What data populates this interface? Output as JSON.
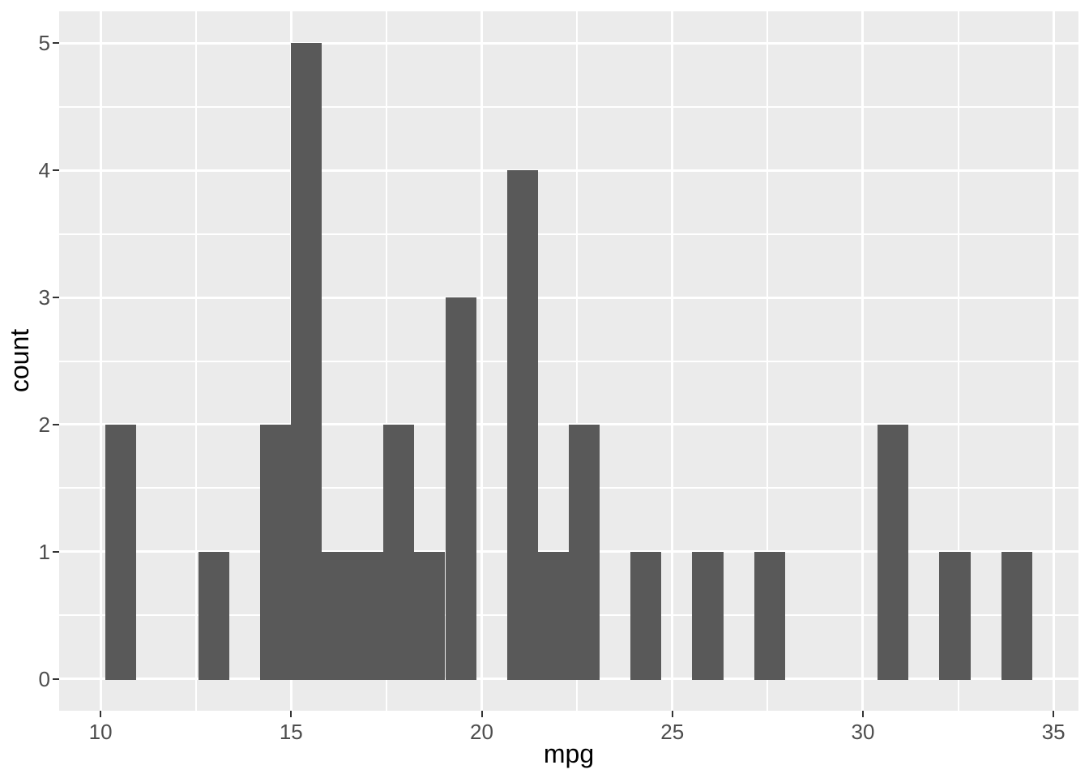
{
  "chart_data": {
    "type": "bar",
    "subtype": "histogram",
    "title": "",
    "xlabel": "mpg",
    "ylabel": "count",
    "x_ticks": [
      10,
      15,
      20,
      25,
      30,
      35
    ],
    "y_ticks": [
      0,
      1,
      2,
      3,
      4,
      5
    ],
    "x_minor_ticks": [
      12.5,
      17.5,
      22.5,
      27.5,
      32.5
    ],
    "y_minor_ticks": [
      0.5,
      1.5,
      2.5,
      3.5,
      4.5
    ],
    "xlim": [
      8.914,
      35.655
    ],
    "ylim": [
      -0.25,
      5.25
    ],
    "grid": true,
    "legend_position": "none",
    "binwidth": 0.8103,
    "bin_edges": [
      10.129,
      10.94,
      11.75,
      12.56,
      13.371,
      14.181,
      14.991,
      15.802,
      16.612,
      17.422,
      18.233,
      19.043,
      19.853,
      20.664,
      21.474,
      22.284,
      23.095,
      23.905,
      24.716,
      25.526,
      26.336,
      27.147,
      27.957,
      28.767,
      29.578,
      30.388,
      31.198,
      32.009,
      32.819,
      33.629,
      34.44
    ],
    "counts": [
      2,
      0,
      0,
      1,
      0,
      2,
      5,
      1,
      1,
      2,
      1,
      3,
      0,
      4,
      1,
      2,
      0,
      1,
      0,
      1,
      0,
      1,
      0,
      0,
      0,
      2,
      0,
      1,
      0,
      1
    ],
    "colors": {
      "bar": "#595959",
      "panel_background": "#EBEBEB",
      "gridline": "#FFFFFF",
      "axis_text": "#4D4D4D",
      "axis_title": "#000000",
      "axis_ticks": "#333333",
      "figure_background": "#FFFFFF"
    }
  }
}
